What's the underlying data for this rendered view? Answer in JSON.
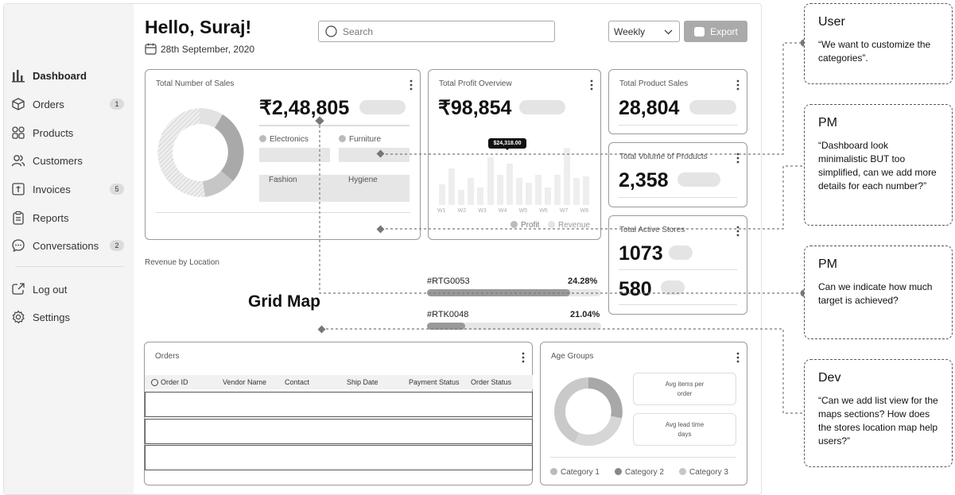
{
  "header": {
    "greeting": "Hello, Suraj!",
    "date": "28th September, 2020",
    "search_placeholder": "Search",
    "period": "Weekly",
    "export_label": "Export"
  },
  "sidebar": {
    "items": [
      {
        "label": "Dashboard",
        "icon": "bar-chart-icon",
        "active": true
      },
      {
        "label": "Orders",
        "icon": "box-icon",
        "badge": "1"
      },
      {
        "label": "Products",
        "icon": "grid-icon"
      },
      {
        "label": "Customers",
        "icon": "users-icon"
      },
      {
        "label": "Invoices",
        "icon": "invoice-icon",
        "badge": "5"
      },
      {
        "label": "Reports",
        "icon": "clipboard-icon"
      },
      {
        "label": "Conversations",
        "icon": "chat-icon",
        "badge": "2"
      }
    ],
    "bottom": [
      {
        "label": "Log out",
        "icon": "logout-icon"
      },
      {
        "label": "Settings",
        "icon": "gear-icon"
      }
    ]
  },
  "sales_card": {
    "title": "Total Number of Sales",
    "value": "₹2,48,805",
    "categories": [
      "Electronics",
      "Furniture",
      "Fashion",
      "Hygiene"
    ]
  },
  "profit_card": {
    "title": "Total Profit Overview",
    "value": "₹98,854",
    "tooltip": "$24,318.00",
    "weeks": [
      "W1",
      "W2",
      "W3",
      "W4",
      "W5",
      "W6",
      "W7",
      "W8"
    ],
    "legend": [
      "Profit",
      "Revenue"
    ]
  },
  "product_sales": {
    "title": "Total Product Sales",
    "value": "28,804"
  },
  "product_volume": {
    "title": "Total Volume of Products",
    "value": "2,358"
  },
  "active_stores": {
    "title": "Total Active Stores",
    "value": "1073",
    "value2": "580"
  },
  "location": {
    "title": "Revenue by Location",
    "map_label": "Grid Map",
    "rows": [
      {
        "id": "#RTG0053",
        "pct": "24.28%",
        "fill": 0.82
      },
      {
        "id": "#RTK0048",
        "pct": "21.04%",
        "fill": 0.22
      }
    ]
  },
  "orders": {
    "title": "Orders",
    "columns": [
      "Order ID",
      "Vendor Name",
      "Contact",
      "Ship Date",
      "Payment Status",
      "Order Status"
    ]
  },
  "age_groups": {
    "title": "Age Groups",
    "stat1": "Avg items per order",
    "stat2": "Avg lead time days",
    "legend": [
      "Category 1",
      "Category 2",
      "Category 3"
    ]
  },
  "annotations": [
    {
      "who": "User",
      "msg": "“We want to customize the categories”."
    },
    {
      "who": "PM",
      "msg": "“Dashboard look minimalistic BUT too simplified, can we add more details for each number?”"
    },
    {
      "who": "PM",
      "msg": "Can we indicate how much target is achieved?"
    },
    {
      "who": "Dev",
      "msg": "“Can we add list view for the maps sections? How does the stores location map help users?”"
    }
  ]
}
